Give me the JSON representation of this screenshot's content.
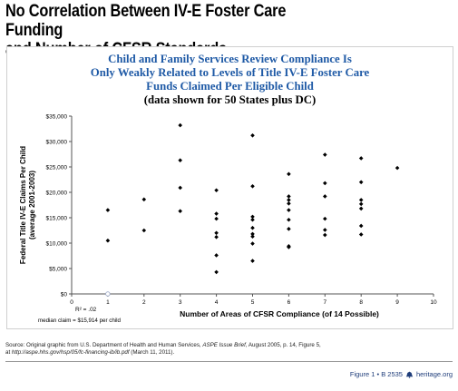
{
  "header": {
    "title_line1": "No Correlation Between IV-E Foster Care Funding",
    "title_line2": "and Number of CFSR Standards"
  },
  "chart_data": {
    "type": "scatter",
    "title_lines": [
      "Child and Family Services Review Compliance Is",
      "Only Weakly Related to Levels of Title IV-E Foster Care",
      "Funds Claimed Per Eligible Child",
      "(data shown for 50 States plus DC)"
    ],
    "xlabel": "Number of Areas of CFSR Compliance (of 14 Possible)",
    "ylabel_lines": [
      "Federal Title IV-E Claims Per Child",
      "(average 2001-2003)"
    ],
    "xlim": [
      0,
      10
    ],
    "ylim": [
      0,
      35000
    ],
    "x_ticks": [
      "0",
      "1",
      "2",
      "3",
      "4",
      "5",
      "6",
      "7",
      "8",
      "9",
      "10"
    ],
    "y_ticks": [
      "$0",
      "$5,000",
      "$10,000",
      "$15,000",
      "$20,000",
      "$25,000",
      "$30,000",
      "$35,000"
    ],
    "grid": false,
    "annotations": {
      "r_squared": "R² = .02",
      "median": "median  claim = $15,914 per child"
    },
    "points": [
      {
        "x": 1,
        "y": 16500
      },
      {
        "x": 1,
        "y": 10500
      },
      {
        "x": 2,
        "y": 18600
      },
      {
        "x": 2,
        "y": 12500
      },
      {
        "x": 3,
        "y": 33200
      },
      {
        "x": 3,
        "y": 26300
      },
      {
        "x": 3,
        "y": 20900
      },
      {
        "x": 3,
        "y": 16300
      },
      {
        "x": 4,
        "y": 20400
      },
      {
        "x": 4,
        "y": 15800
      },
      {
        "x": 4,
        "y": 14800
      },
      {
        "x": 4,
        "y": 12000
      },
      {
        "x": 4,
        "y": 11200
      },
      {
        "x": 4,
        "y": 7600
      },
      {
        "x": 4,
        "y": 4300
      },
      {
        "x": 5,
        "y": 31200
      },
      {
        "x": 5,
        "y": 21200
      },
      {
        "x": 5,
        "y": 15200
      },
      {
        "x": 5,
        "y": 14600
      },
      {
        "x": 5,
        "y": 13000
      },
      {
        "x": 5,
        "y": 11800
      },
      {
        "x": 5,
        "y": 11300
      },
      {
        "x": 5,
        "y": 9900
      },
      {
        "x": 5,
        "y": 6500
      },
      {
        "x": 6,
        "y": 23600
      },
      {
        "x": 6,
        "y": 19200
      },
      {
        "x": 6,
        "y": 18500
      },
      {
        "x": 6,
        "y": 17800
      },
      {
        "x": 6,
        "y": 16500
      },
      {
        "x": 6,
        "y": 14600
      },
      {
        "x": 6,
        "y": 12800
      },
      {
        "x": 6,
        "y": 9400
      },
      {
        "x": 6,
        "y": 9200
      },
      {
        "x": 7,
        "y": 27400
      },
      {
        "x": 7,
        "y": 21800
      },
      {
        "x": 7,
        "y": 19200
      },
      {
        "x": 7,
        "y": 14800
      },
      {
        "x": 7,
        "y": 12600
      },
      {
        "x": 7,
        "y": 11600
      },
      {
        "x": 8,
        "y": 26700
      },
      {
        "x": 8,
        "y": 22000
      },
      {
        "x": 8,
        "y": 18500
      },
      {
        "x": 8,
        "y": 17700
      },
      {
        "x": 8,
        "y": 16800
      },
      {
        "x": 8,
        "y": 13400
      },
      {
        "x": 8,
        "y": 11700
      },
      {
        "x": 9,
        "y": 24800
      }
    ],
    "outlier_open_point": {
      "x": 1,
      "y": 0
    }
  },
  "footer": {
    "source_line1_prefix": "Source: Original graphic from U.S. Department of Health and Human Services, ",
    "source_line1_italic": "ASPE Issue Brief",
    "source_line1_suffix": ", August 2005, p. 14, Figure 5,",
    "source_line2_prefix": "at ",
    "source_line2_italic": "http://aspe.hhs.gov/hsp/05/fc-financing-ib/ib.pdf",
    "source_line2_suffix": " (March 11, 2011).",
    "figure_ref": "Figure 1 • B 2535",
    "site": "heritage.org"
  },
  "colors": {
    "heading_blue": "#1f5aa6",
    "point": "#000000",
    "footer_blue": "#1f3d7a"
  }
}
